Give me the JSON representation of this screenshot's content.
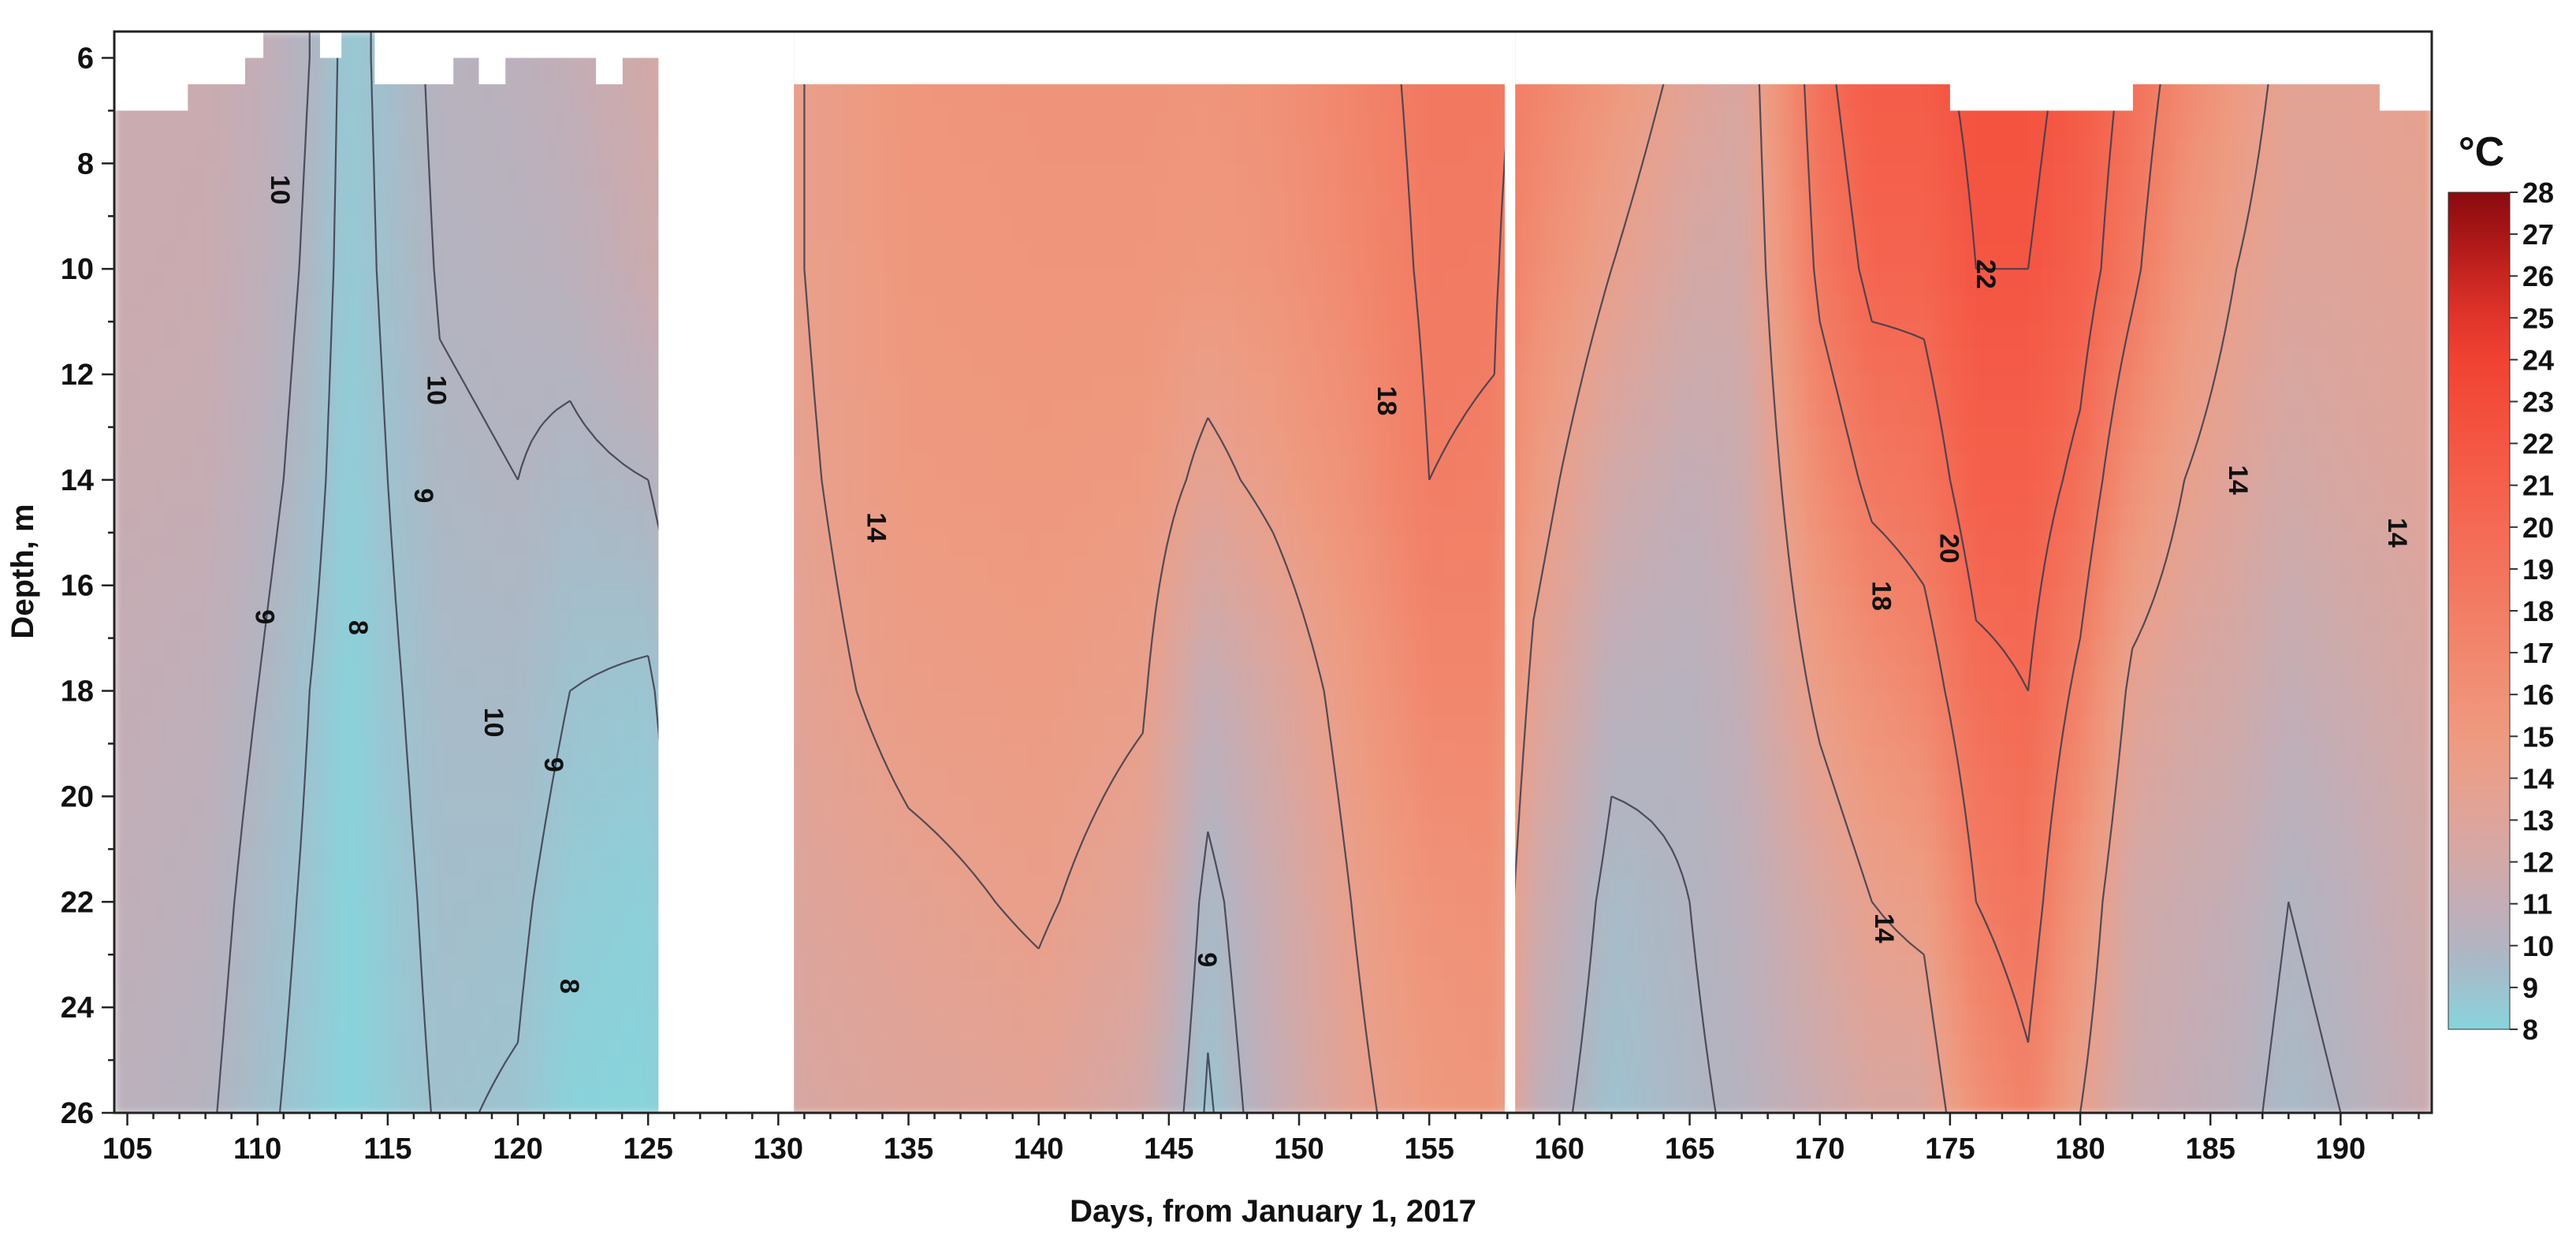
{
  "chart_data": {
    "type": "heatmap",
    "subtype": "depth-time temperature section with labeled isotherms",
    "title": "",
    "xlabel": "Days, from January 1, 2017",
    "ylabel": "Depth, m",
    "xlim": [
      104.5,
      193.5
    ],
    "ylim": [
      26,
      5.5
    ],
    "y_axis_inverted": true,
    "x_ticks": [
      105,
      110,
      115,
      120,
      125,
      130,
      135,
      140,
      145,
      150,
      155,
      160,
      165,
      170,
      175,
      180,
      185,
      190
    ],
    "y_ticks": [
      6,
      8,
      10,
      12,
      14,
      16,
      18,
      20,
      22,
      24,
      26
    ],
    "colorbar": {
      "unit": "°C",
      "min": 8,
      "max": 28,
      "ticks": [
        8,
        9,
        10,
        11,
        12,
        13,
        14,
        15,
        16,
        17,
        18,
        19,
        20,
        21,
        22,
        23,
        24,
        25,
        26,
        27,
        28
      ],
      "stops": [
        {
          "value": 8,
          "color": "#88d4dc"
        },
        {
          "value": 9,
          "color": "#9ec2cf"
        },
        {
          "value": 10,
          "color": "#b2b4c1"
        },
        {
          "value": 11,
          "color": "#c3adb6"
        },
        {
          "value": 12,
          "color": "#d1a9a7"
        },
        {
          "value": 13,
          "color": "#dea49a"
        },
        {
          "value": 14,
          "color": "#e8a08c"
        },
        {
          "value": 15,
          "color": "#ee9a80"
        },
        {
          "value": 16,
          "color": "#f09177"
        },
        {
          "value": 17,
          "color": "#f1876d"
        },
        {
          "value": 18,
          "color": "#f27d65"
        },
        {
          "value": 19,
          "color": "#f3735c"
        },
        {
          "value": 20,
          "color": "#f46a54"
        },
        {
          "value": 21,
          "color": "#f4604b"
        },
        {
          "value": 22,
          "color": "#f45643"
        },
        {
          "value": 23,
          "color": "#f34c3b"
        },
        {
          "value": 24,
          "color": "#f04233"
        },
        {
          "value": 25,
          "color": "#e0352a"
        },
        {
          "value": 26,
          "color": "#c82520"
        },
        {
          "value": 27,
          "color": "#a81616"
        },
        {
          "value": 28,
          "color": "#8a0a0e"
        }
      ]
    },
    "data_gaps": [
      [
        125.4,
        130.6
      ],
      [
        157.9,
        158.3
      ]
    ],
    "surface_depth_segments": [
      {
        "x": [
          104.5,
          107.3
        ],
        "top": 7.0
      },
      {
        "x": [
          107.3,
          109.5
        ],
        "top": 6.5
      },
      {
        "x": [
          109.5,
          110.2
        ],
        "top": 6.0
      },
      {
        "x": [
          110.2,
          112.4
        ],
        "top": 5.5
      },
      {
        "x": [
          112.4,
          113.2
        ],
        "top": 6.0
      },
      {
        "x": [
          113.2,
          114.5
        ],
        "top": 5.5
      },
      {
        "x": [
          114.5,
          117.5
        ],
        "top": 6.5
      },
      {
        "x": [
          117.5,
          118.5
        ],
        "top": 6.0
      },
      {
        "x": [
          118.5,
          119.5
        ],
        "top": 6.5
      },
      {
        "x": [
          119.5,
          123.0
        ],
        "top": 6.0
      },
      {
        "x": [
          123.0,
          124.0
        ],
        "top": 6.5
      },
      {
        "x": [
          124.0,
          125.4
        ],
        "top": 6.0
      },
      {
        "x": [
          130.6,
          157.9
        ],
        "top": 6.5
      },
      {
        "x": [
          158.3,
          175.0
        ],
        "top": 6.5
      },
      {
        "x": [
          175.0,
          182.0
        ],
        "top": 7.0
      },
      {
        "x": [
          182.0,
          191.5
        ],
        "top": 6.5
      },
      {
        "x": [
          191.5,
          193.5
        ],
        "top": 7.0
      }
    ],
    "temperature_profile_samples": {
      "depths": [
        6,
        10,
        14,
        18,
        22,
        26
      ],
      "columns": [
        {
          "day": 105,
          "t": [
            11.5,
            11.5,
            11.3,
            11.0,
            10.8,
            10.5
          ]
        },
        {
          "day": 108,
          "t": [
            11.5,
            11.4,
            11.2,
            10.8,
            10.5,
            10.2
          ]
        },
        {
          "day": 110,
          "t": [
            11.0,
            10.8,
            10.5,
            10.0,
            9.6,
            9.3
          ]
        },
        {
          "day": 112,
          "t": [
            10.0,
            9.8,
            9.5,
            9.0,
            8.8,
            8.6
          ]
        },
        {
          "day": 113.5,
          "t": [
            8.6,
            8.5,
            8.3,
            8.1,
            8.0,
            8.0
          ]
        },
        {
          "day": 115,
          "t": [
            9.3,
            9.2,
            9.0,
            8.8,
            8.6,
            8.5
          ]
        },
        {
          "day": 117,
          "t": [
            10.3,
            10.1,
            9.8,
            9.5,
            9.3,
            9.1
          ]
        },
        {
          "day": 120,
          "t": [
            10.5,
            10.3,
            10.0,
            9.6,
            9.2,
            8.9
          ]
        },
        {
          "day": 122,
          "t": [
            11.0,
            10.5,
            9.7,
            9.0,
            8.5,
            8.1
          ]
        },
        {
          "day": 125,
          "t": [
            12.0,
            11.5,
            10.0,
            8.8,
            8.2,
            8.0
          ]
        },
        {
          "day": 131,
          "t": [
            14.0,
            14.0,
            13.8,
            13.5,
            13.0,
            12.5
          ]
        },
        {
          "day": 135,
          "t": [
            15.5,
            15.3,
            15.0,
            14.5,
            13.6,
            13.0
          ]
        },
        {
          "day": 140,
          "t": [
            15.7,
            15.5,
            15.2,
            14.8,
            14.2,
            13.3
          ]
        },
        {
          "day": 144,
          "t": [
            15.7,
            15.5,
            15.0,
            14.2,
            13.2,
            12.0
          ]
        },
        {
          "day": 146.5,
          "t": [
            15.6,
            15.2,
            13.5,
            11.0,
            9.5,
            8.8
          ]
        },
        {
          "day": 149,
          "t": [
            16.0,
            15.6,
            14.5,
            12.5,
            11.5,
            11.0
          ]
        },
        {
          "day": 152,
          "t": [
            17.2,
            16.8,
            16.0,
            14.8,
            14.0,
            13.5
          ]
        },
        {
          "day": 155,
          "t": [
            18.5,
            18.3,
            18.0,
            17.0,
            15.8,
            15.0
          ]
        },
        {
          "day": 157.5,
          "t": [
            18.5,
            18.2,
            17.8,
            17.0,
            16.0,
            15.5
          ]
        },
        {
          "day": 159,
          "t": [
            17.5,
            16.5,
            15.0,
            13.5,
            12.0,
            11.0
          ]
        },
        {
          "day": 162,
          "t": [
            15.5,
            14.0,
            12.0,
            10.5,
            9.5,
            9.0
          ]
        },
        {
          "day": 165,
          "t": [
            13.5,
            12.2,
            11.0,
            10.3,
            10.0,
            9.8
          ]
        },
        {
          "day": 167,
          "t": [
            12.5,
            12.0,
            11.5,
            11.0,
            10.5,
            10.2
          ]
        },
        {
          "day": 170,
          "t": [
            19.5,
            18.5,
            16.5,
            14.5,
            12.5,
            11.5
          ]
        },
        {
          "day": 172,
          "t": [
            21.5,
            20.5,
            18.5,
            16.0,
            14.0,
            12.5
          ]
        },
        {
          "day": 174,
          "t": [
            21.5,
            20.5,
            19.0,
            17.0,
            14.5,
            12.5
          ]
        },
        {
          "day": 176,
          "t": [
            22.5,
            22.0,
            21.0,
            19.5,
            18.0,
            16.0
          ]
        },
        {
          "day": 178,
          "t": [
            22.5,
            22.0,
            21.0,
            20.0,
            19.0,
            17.5
          ]
        },
        {
          "day": 180,
          "t": [
            21.5,
            21.0,
            19.5,
            17.5,
            15.5,
            14.0
          ]
        },
        {
          "day": 182,
          "t": [
            19.5,
            18.5,
            16.0,
            13.5,
            12.0,
            11.5
          ]
        },
        {
          "day": 184,
          "t": [
            17.0,
            15.5,
            14.0,
            12.5,
            11.5,
            11.0
          ]
        },
        {
          "day": 186,
          "t": [
            15.0,
            14.0,
            13.0,
            12.0,
            11.0,
            10.5
          ]
        },
        {
          "day": 188,
          "t": [
            13.5,
            13.0,
            12.0,
            11.0,
            10.0,
            9.5
          ]
        },
        {
          "day": 190,
          "t": [
            13.5,
            13.0,
            12.5,
            11.5,
            10.5,
            10.0
          ]
        },
        {
          "day": 193.5,
          "t": [
            14.0,
            13.5,
            13.0,
            12.5,
            12.0,
            11.5
          ]
        }
      ]
    },
    "isotherm_labels": [
      {
        "text": "10",
        "x": 110.8,
        "y": 8.5,
        "rotate": 90
      },
      {
        "text": "10",
        "x": 116.8,
        "y": 12.3,
        "rotate": 90
      },
      {
        "text": "9",
        "x": 116.3,
        "y": 14.3,
        "rotate": 90
      },
      {
        "text": "9",
        "x": 110.2,
        "y": 16.6,
        "rotate": 90
      },
      {
        "text": "8",
        "x": 113.8,
        "y": 16.8,
        "rotate": 90
      },
      {
        "text": "10",
        "x": 119.0,
        "y": 18.6,
        "rotate": 90
      },
      {
        "text": "9",
        "x": 121.3,
        "y": 19.4,
        "rotate": 90
      },
      {
        "text": "8",
        "x": 121.9,
        "y": 23.6,
        "rotate": 90
      },
      {
        "text": "14",
        "x": 133.7,
        "y": 14.9,
        "rotate": 90
      },
      {
        "text": "9",
        "x": 146.4,
        "y": 23.1,
        "rotate": 90
      },
      {
        "text": "18",
        "x": 153.3,
        "y": 12.5,
        "rotate": 90
      },
      {
        "text": "22",
        "x": 176.3,
        "y": 10.1,
        "rotate": 90
      },
      {
        "text": "20",
        "x": 174.9,
        "y": 15.3,
        "rotate": 90
      },
      {
        "text": "18",
        "x": 172.3,
        "y": 16.2,
        "rotate": 90
      },
      {
        "text": "14",
        "x": 186.0,
        "y": 14.0,
        "rotate": 90
      },
      {
        "text": "14",
        "x": 192.1,
        "y": 15.0,
        "rotate": 90
      },
      {
        "text": "14",
        "x": 172.4,
        "y": 22.5,
        "rotate": 90
      }
    ],
    "grid": false,
    "legend": "colorbar right"
  }
}
